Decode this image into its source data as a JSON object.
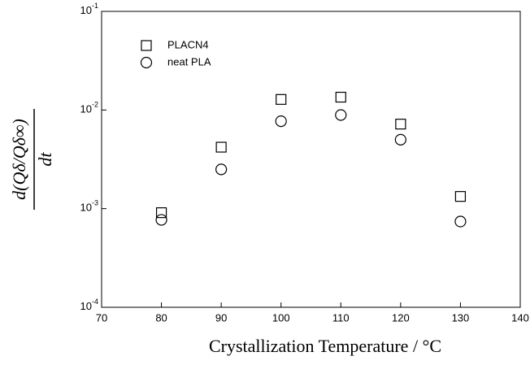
{
  "chart_data": {
    "type": "scatter",
    "xlabel": "Crystallization Temperature / °C",
    "ylabel": {
      "numerator": "d(Qδ/Qδ∞)",
      "denominator": "dt"
    },
    "xlim": [
      70,
      140
    ],
    "xticks": [
      70,
      80,
      90,
      100,
      110,
      120,
      130,
      140
    ],
    "ylim": [
      0.0001,
      0.1
    ],
    "log_y": true,
    "yticks": [
      {
        "value": 0.0001,
        "label": "10-4"
      },
      {
        "value": 0.001,
        "label": "10-3"
      },
      {
        "value": 0.01,
        "label": "10-2"
      },
      {
        "value": 0.1,
        "label": "10-1"
      }
    ],
    "legend": "upper left",
    "series": [
      {
        "name": "PLACN4",
        "color": "#000000",
        "marker": "square",
        "x": [
          80,
          90,
          100,
          110,
          120,
          130
        ],
        "values": [
          0.00091,
          0.0042,
          0.0128,
          0.0135,
          0.0072,
          0.00133
        ]
      },
      {
        "name": "neat PLA",
        "color": "#000000",
        "marker": "circle",
        "x": [
          80,
          90,
          100,
          110,
          120,
          130
        ],
        "values": [
          0.00077,
          0.0025,
          0.0077,
          0.0089,
          0.005,
          0.00074
        ]
      }
    ]
  }
}
